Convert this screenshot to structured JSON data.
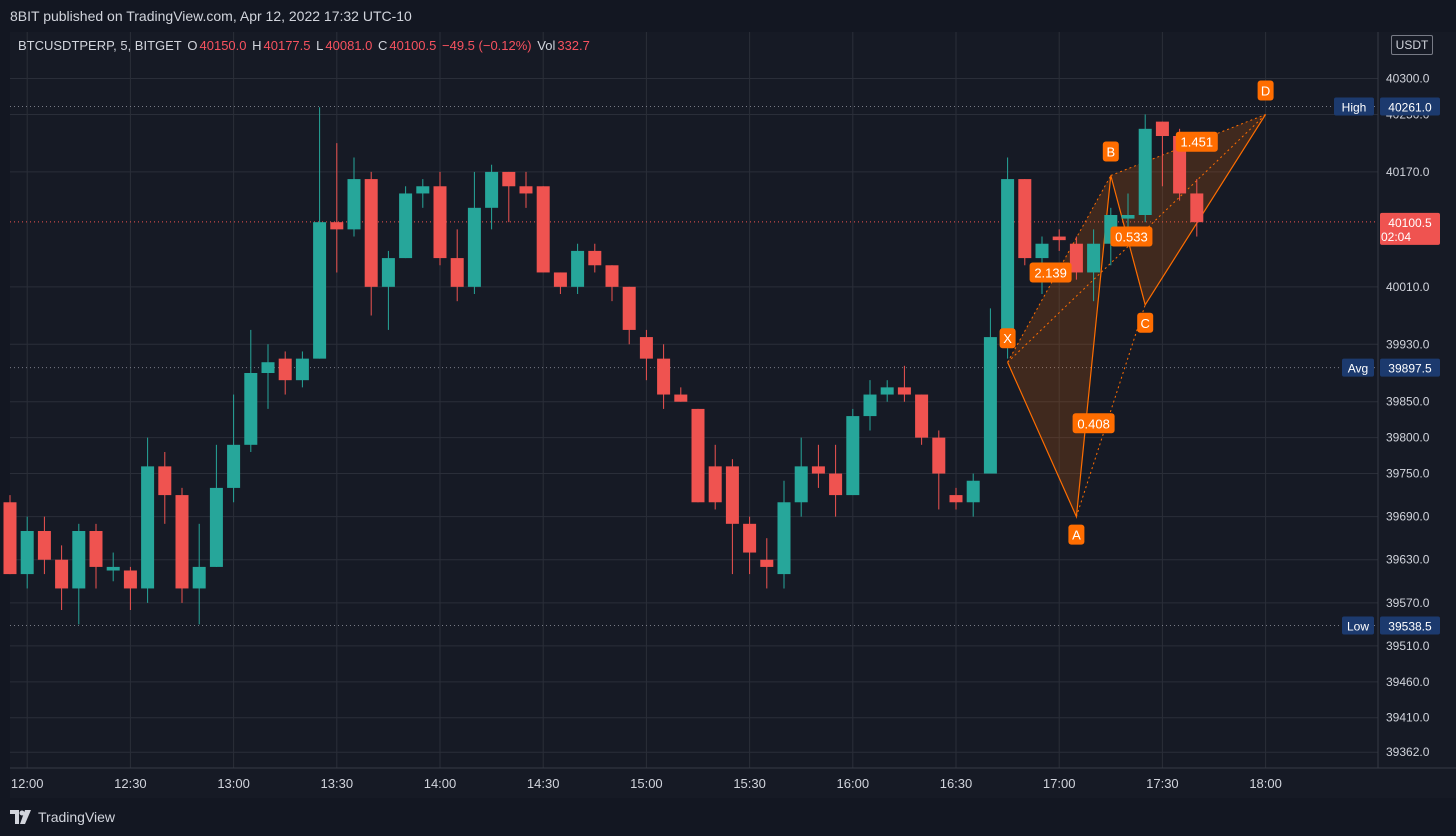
{
  "header": {
    "published": "8BIT published on TradingView.com, Apr 12, 2022 17:32 UTC-10"
  },
  "legend": {
    "symbol": "BTCUSDTPERP, 5, BITGET",
    "open_label": "O",
    "open": "40150.0",
    "high_label": "H",
    "high": "40177.5",
    "low_label": "L",
    "low": "40081.0",
    "close_label": "C",
    "close": "40100.5",
    "change": "−49.5 (−0.12%)",
    "vol_label": "Vol",
    "vol": "332.7"
  },
  "price_scale": {
    "unit": "USDT"
  },
  "colors": {
    "up": "#26a69a",
    "down": "#ef5350",
    "pattern": "#ff6d00",
    "grid": "#2a2e39",
    "text": "#d1d4dc",
    "tag": "#1c3a6e"
  },
  "footer": {
    "brand": "TradingView",
    "brand_icon": "tradingview-logo-icon"
  },
  "chart_data": {
    "type": "candlestick",
    "x_start": "11:55",
    "bar_minutes": 5,
    "x_tick_labels": [
      "12:00",
      "12:30",
      "13:00",
      "13:30",
      "14:00",
      "14:30",
      "15:00",
      "15:30",
      "16:00",
      "16:30",
      "17:00",
      "17:30",
      "18:00"
    ],
    "y_tick_labels": [
      "40300.0",
      "40250.0",
      "40170.0",
      "40010.0",
      "39930.0",
      "39850.0",
      "39800.0",
      "39750.0",
      "39690.0",
      "39630.0",
      "39570.0",
      "39510.0",
      "39460.0",
      "39410.0",
      "39362.0"
    ],
    "y_tick_values": [
      40300,
      40250,
      40170,
      40010,
      39930,
      39850,
      39800,
      39750,
      39690,
      39630,
      39570,
      39510,
      39460,
      39410,
      39362
    ],
    "ylim": [
      39310,
      40360
    ],
    "candles": [
      {
        "o": 39710,
        "h": 39720,
        "l": 39610,
        "c": 39610
      },
      {
        "o": 39610,
        "h": 39690,
        "l": 39590,
        "c": 39670
      },
      {
        "o": 39670,
        "h": 39690,
        "l": 39610,
        "c": 39630
      },
      {
        "o": 39630,
        "h": 39650,
        "l": 39560,
        "c": 39590
      },
      {
        "o": 39590,
        "h": 39680,
        "l": 39540,
        "c": 39670
      },
      {
        "o": 39670,
        "h": 39680,
        "l": 39590,
        "c": 39620
      },
      {
        "o": 39615,
        "h": 39640,
        "l": 39600,
        "c": 39620
      },
      {
        "o": 39615,
        "h": 39620,
        "l": 39560,
        "c": 39590
      },
      {
        "o": 39590,
        "h": 39800,
        "l": 39570,
        "c": 39760
      },
      {
        "o": 39760,
        "h": 39780,
        "l": 39680,
        "c": 39720
      },
      {
        "o": 39720,
        "h": 39730,
        "l": 39570,
        "c": 39590
      },
      {
        "o": 39590,
        "h": 39680,
        "l": 39540,
        "c": 39620
      },
      {
        "o": 39620,
        "h": 39790,
        "l": 39620,
        "c": 39730
      },
      {
        "o": 39730,
        "h": 39860,
        "l": 39710,
        "c": 39790
      },
      {
        "o": 39790,
        "h": 39950,
        "l": 39780,
        "c": 39890
      },
      {
        "o": 39890,
        "h": 39930,
        "l": 39840,
        "c": 39905
      },
      {
        "o": 39910,
        "h": 39920,
        "l": 39860,
        "c": 39880
      },
      {
        "o": 39880,
        "h": 39920,
        "l": 39870,
        "c": 39910
      },
      {
        "o": 39910,
        "h": 40260,
        "l": 39910,
        "c": 40100
      },
      {
        "o": 40100,
        "h": 40210,
        "l": 40030,
        "c": 40090
      },
      {
        "o": 40090,
        "h": 40190,
        "l": 40080,
        "c": 40160
      },
      {
        "o": 40160,
        "h": 40170,
        "l": 39970,
        "c": 40010
      },
      {
        "o": 40010,
        "h": 40060,
        "l": 39950,
        "c": 40050
      },
      {
        "o": 40050,
        "h": 40150,
        "l": 40050,
        "c": 40140
      },
      {
        "o": 40140,
        "h": 40160,
        "l": 40120,
        "c": 40150
      },
      {
        "o": 40150,
        "h": 40170,
        "l": 40040,
        "c": 40050
      },
      {
        "o": 40050,
        "h": 40090,
        "l": 39990,
        "c": 40010
      },
      {
        "o": 40010,
        "h": 40170,
        "l": 40000,
        "c": 40120
      },
      {
        "o": 40120,
        "h": 40180,
        "l": 40090,
        "c": 40170
      },
      {
        "o": 40170,
        "h": 40170,
        "l": 40100,
        "c": 40150
      },
      {
        "o": 40150,
        "h": 40170,
        "l": 40120,
        "c": 40140
      },
      {
        "o": 40150,
        "h": 40150,
        "l": 40030,
        "c": 40030
      },
      {
        "o": 40030,
        "h": 40030,
        "l": 40000,
        "c": 40010
      },
      {
        "o": 40010,
        "h": 40070,
        "l": 40000,
        "c": 40060
      },
      {
        "o": 40060,
        "h": 40070,
        "l": 40030,
        "c": 40040
      },
      {
        "o": 40040,
        "h": 40040,
        "l": 39990,
        "c": 40010
      },
      {
        "o": 40010,
        "h": 40010,
        "l": 39930,
        "c": 39950
      },
      {
        "o": 39940,
        "h": 39950,
        "l": 39880,
        "c": 39910
      },
      {
        "o": 39910,
        "h": 39930,
        "l": 39840,
        "c": 39860
      },
      {
        "o": 39860,
        "h": 39870,
        "l": 39850,
        "c": 39850
      },
      {
        "o": 39840,
        "h": 39840,
        "l": 39710,
        "c": 39710
      },
      {
        "o": 39760,
        "h": 39790,
        "l": 39700,
        "c": 39710
      },
      {
        "o": 39760,
        "h": 39770,
        "l": 39610,
        "c": 39680
      },
      {
        "o": 39680,
        "h": 39690,
        "l": 39610,
        "c": 39640
      },
      {
        "o": 39630,
        "h": 39660,
        "l": 39590,
        "c": 39620
      },
      {
        "o": 39610,
        "h": 39740,
        "l": 39590,
        "c": 39710
      },
      {
        "o": 39710,
        "h": 39800,
        "l": 39690,
        "c": 39760
      },
      {
        "o": 39760,
        "h": 39790,
        "l": 39730,
        "c": 39750
      },
      {
        "o": 39750,
        "h": 39790,
        "l": 39690,
        "c": 39720
      },
      {
        "o": 39720,
        "h": 39840,
        "l": 39720,
        "c": 39830
      },
      {
        "o": 39830,
        "h": 39880,
        "l": 39810,
        "c": 39860
      },
      {
        "o": 39860,
        "h": 39880,
        "l": 39850,
        "c": 39870
      },
      {
        "o": 39870,
        "h": 39900,
        "l": 39850,
        "c": 39860
      },
      {
        "o": 39860,
        "h": 39860,
        "l": 39790,
        "c": 39800
      },
      {
        "o": 39800,
        "h": 39810,
        "l": 39700,
        "c": 39750
      },
      {
        "o": 39720,
        "h": 39730,
        "l": 39700,
        "c": 39710
      },
      {
        "o": 39710,
        "h": 39750,
        "l": 39690,
        "c": 39740
      },
      {
        "o": 39750,
        "h": 39980,
        "l": 39750,
        "c": 39940
      },
      {
        "o": 39940,
        "h": 40190,
        "l": 39910,
        "c": 40160
      },
      {
        "o": 40160,
        "h": 40160,
        "l": 40040,
        "c": 40050
      },
      {
        "o": 40050,
        "h": 40080,
        "l": 40000,
        "c": 40070
      },
      {
        "o": 40080,
        "h": 40090,
        "l": 40060,
        "c": 40075
      },
      {
        "o": 40070,
        "h": 40080,
        "l": 40020,
        "c": 40030
      },
      {
        "o": 40030,
        "h": 40090,
        "l": 39990,
        "c": 40070
      },
      {
        "o": 40070,
        "h": 40120,
        "l": 40040,
        "c": 40110
      },
      {
        "o": 40105,
        "h": 40140,
        "l": 40090,
        "c": 40110
      },
      {
        "o": 40110,
        "h": 40250,
        "l": 40100,
        "c": 40230
      },
      {
        "o": 40240,
        "h": 40240,
        "l": 40150,
        "c": 40220
      },
      {
        "o": 40220,
        "h": 40230,
        "l": 40130,
        "c": 40140
      },
      {
        "o": 40140,
        "h": 40160,
        "l": 40080,
        "c": 40100
      }
    ],
    "price_tags": [
      {
        "label": "High",
        "value": "40261.0",
        "price": 40261
      },
      {
        "label": "Avg",
        "value": "39897.5",
        "price": 39897.5
      },
      {
        "label": "Low",
        "value": "39538.5",
        "price": 39538.5
      }
    ],
    "last_price": {
      "value": "40100.5",
      "countdown": "02:04",
      "price": 40100.5
    },
    "harmonic_pattern": {
      "points": [
        {
          "label": "X",
          "bar": 58,
          "price": 39905
        },
        {
          "label": "A",
          "bar": 62,
          "price": 39690
        },
        {
          "label": "B",
          "bar": 64,
          "price": 40165
        },
        {
          "label": "C",
          "bar": 66,
          "price": 39985
        },
        {
          "label": "D",
          "bar": 73,
          "price": 40250
        }
      ],
      "ratios": [
        {
          "text": "2.139",
          "bar": 60.5,
          "price": 40030
        },
        {
          "text": "1.451",
          "bar": 69,
          "price": 40212
        },
        {
          "text": "0.408",
          "bar": 63,
          "price": 39820
        },
        {
          "text": "0.533",
          "bar": 65.2,
          "price": 40080
        }
      ]
    }
  }
}
